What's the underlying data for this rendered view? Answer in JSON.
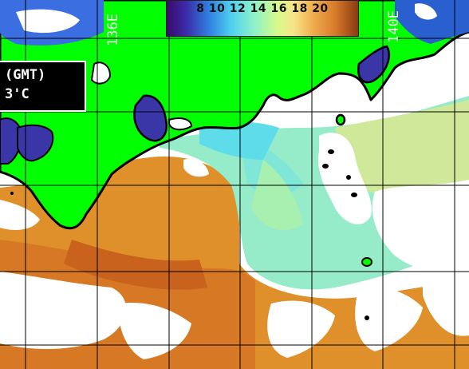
{
  "colorbar": {
    "tick_labels": "8  10 12 14 16 18 20",
    "ticks": [
      8,
      10,
      12,
      14,
      16,
      18,
      20
    ]
  },
  "info_box": {
    "line1": "(GMT)",
    "line2": "3'C"
  },
  "longitude_labels": {
    "left": "136E",
    "right": "140E"
  },
  "colors": {
    "land": "#00ff00",
    "coastline": "#000000",
    "cloud": "#ffffff",
    "sea_warm": "#e0902a",
    "sea_cool": "#96ecc8",
    "sea_mid": "#cfe89a",
    "cold_inland": "#3a36a8",
    "grid": "#000000"
  }
}
